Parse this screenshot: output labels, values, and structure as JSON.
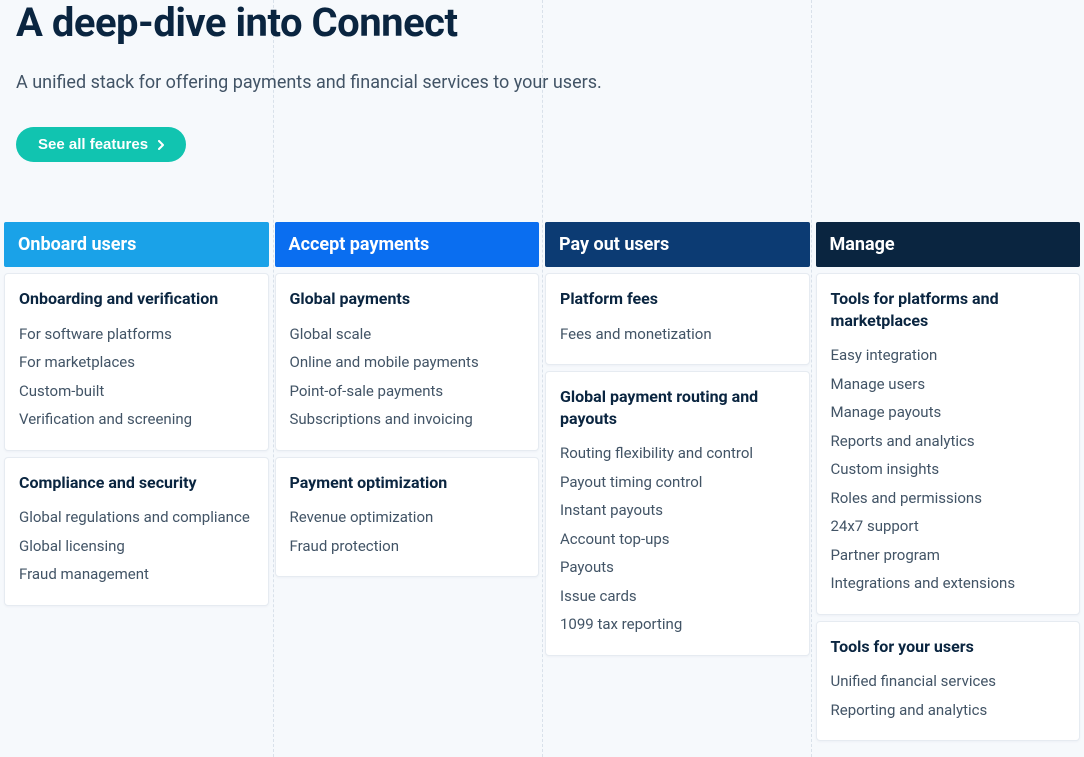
{
  "hero": {
    "title": "A deep-dive into Connect",
    "subtitle": "A unified stack for offering payments and financial services to your users.",
    "cta_label": "See all features"
  },
  "guides_x": [
    273,
    542,
    811
  ],
  "columns": [
    {
      "header": "Onboard users",
      "header_bg": "#1aa2e8",
      "groups": [
        {
          "title": "Onboarding and verification",
          "items": [
            "For software platforms",
            "For marketplaces",
            "Custom-built",
            "Verification and screening"
          ]
        },
        {
          "title": "Compliance and security",
          "items": [
            "Global regulations and compliance",
            "Global licensing",
            "Fraud management"
          ]
        }
      ]
    },
    {
      "header": "Accept payments",
      "header_bg": "#0a6ef0",
      "groups": [
        {
          "title": "Global payments",
          "items": [
            "Global scale",
            "Online and mobile payments",
            "Point-of-sale payments",
            "Subscriptions and invoicing"
          ]
        },
        {
          "title": "Payment optimization",
          "items": [
            "Revenue optimization",
            "Fraud protection"
          ]
        }
      ]
    },
    {
      "header": "Pay out users",
      "header_bg": "#0c3b73",
      "groups": [
        {
          "title": "Platform fees",
          "items": [
            "Fees and monetization"
          ]
        },
        {
          "title": "Global payment routing and payouts",
          "items": [
            "Routing flexibility and control",
            "Payout timing control",
            "Instant payouts",
            "Account top-ups",
            "Payouts",
            "Issue cards",
            "1099 tax reporting"
          ]
        }
      ]
    },
    {
      "header": "Manage",
      "header_bg": "#0a2540",
      "groups": [
        {
          "title": "Tools for platforms and marketplaces",
          "items": [
            "Easy integration",
            "Manage users",
            "Manage payouts",
            "Reports and analytics",
            "Custom insights",
            "Roles and permissions",
            "24x7 support",
            "Partner program",
            "Integrations and extensions"
          ]
        },
        {
          "title": "Tools for your users",
          "items": [
            "Unified financial services",
            "Reporting and analytics"
          ]
        }
      ]
    }
  ]
}
